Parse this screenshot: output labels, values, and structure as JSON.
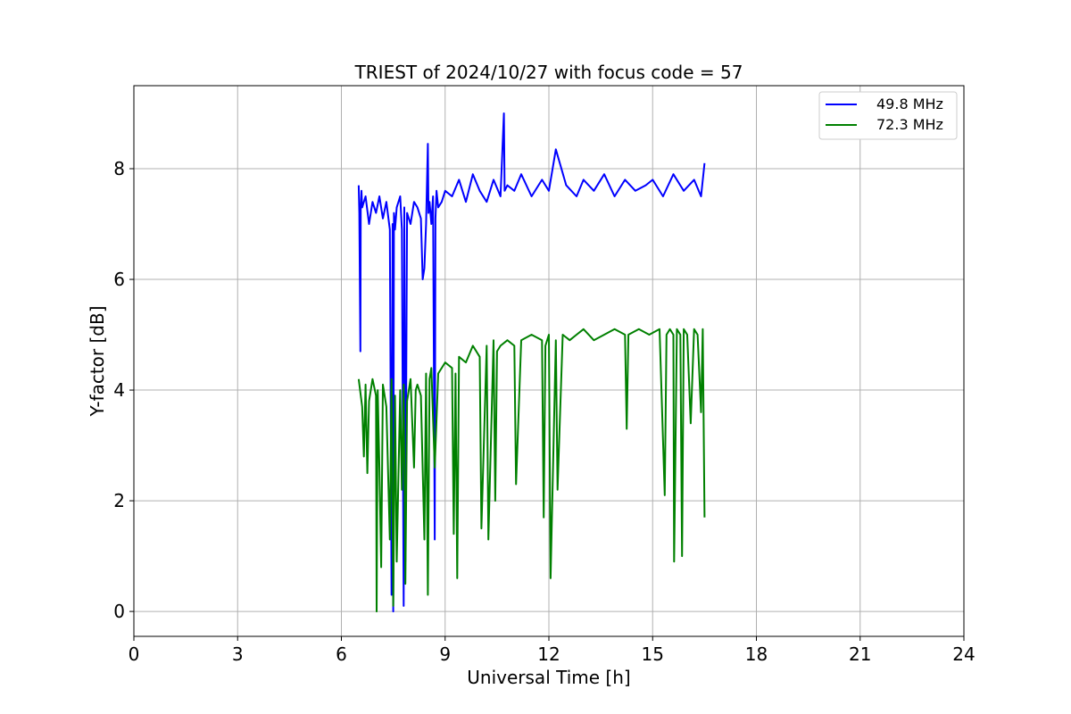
{
  "chart_data": {
    "type": "line",
    "title": "TRIEST of 2024/10/27 with focus code = 57",
    "xlabel": "Universal Time [h]",
    "ylabel": "Y-factor [dB]",
    "xlim": [
      0,
      24
    ],
    "ylim": [
      -0.45,
      9.5
    ],
    "xticks": [
      0,
      3,
      6,
      9,
      12,
      15,
      18,
      21,
      24
    ],
    "yticks": [
      0,
      2,
      4,
      6,
      8
    ],
    "grid": true,
    "legend_position": "top-right",
    "series": [
      {
        "name": "49.8 MHz",
        "color": "#0000ff",
        "x": [
          6.5,
          6.52,
          6.55,
          6.56,
          6.58,
          6.6,
          6.7,
          6.8,
          6.9,
          7.0,
          7.1,
          7.2,
          7.3,
          7.4,
          7.45,
          7.48,
          7.5,
          7.52,
          7.55,
          7.6,
          7.7,
          7.75,
          7.8,
          7.82,
          7.85,
          7.9,
          8.0,
          8.1,
          8.2,
          8.3,
          8.35,
          8.4,
          8.45,
          8.5,
          8.52,
          8.55,
          8.6,
          8.65,
          8.7,
          8.72,
          8.75,
          8.8,
          8.9,
          9.0,
          9.2,
          9.4,
          9.6,
          9.8,
          10.0,
          10.2,
          10.4,
          10.6,
          10.7,
          10.72,
          10.8,
          11.0,
          11.2,
          11.5,
          11.8,
          12.0,
          12.2,
          12.5,
          12.8,
          13.0,
          13.3,
          13.6,
          13.9,
          14.2,
          14.5,
          14.8,
          15.0,
          15.3,
          15.6,
          15.9,
          16.2,
          16.4,
          16.5
        ],
        "y": [
          7.7,
          7.2,
          4.7,
          7.3,
          7.6,
          7.3,
          7.5,
          7.0,
          7.4,
          7.2,
          7.5,
          7.1,
          7.4,
          6.9,
          0.3,
          7.0,
          0.0,
          7.2,
          6.9,
          7.3,
          7.5,
          6.9,
          0.1,
          7.3,
          0.9,
          7.2,
          7.0,
          7.4,
          7.3,
          7.1,
          6.0,
          6.2,
          7.0,
          8.45,
          7.2,
          7.4,
          7.0,
          7.5,
          1.3,
          7.1,
          7.6,
          7.3,
          7.4,
          7.6,
          7.5,
          7.8,
          7.4,
          7.9,
          7.6,
          7.4,
          7.8,
          7.5,
          9.0,
          7.6,
          7.7,
          7.6,
          7.9,
          7.5,
          7.8,
          7.6,
          8.35,
          7.7,
          7.5,
          7.8,
          7.6,
          7.9,
          7.5,
          7.8,
          7.6,
          7.7,
          7.8,
          7.5,
          7.9,
          7.6,
          7.8,
          7.5,
          8.1
        ]
      },
      {
        "name": "72.3 MHz",
        "color": "#008000",
        "x": [
          6.5,
          6.6,
          6.65,
          6.7,
          6.75,
          6.8,
          6.9,
          7.0,
          7.02,
          7.05,
          7.1,
          7.15,
          7.2,
          7.3,
          7.4,
          7.45,
          7.5,
          7.55,
          7.6,
          7.7,
          7.75,
          7.8,
          7.85,
          7.9,
          8.0,
          8.1,
          8.15,
          8.2,
          8.3,
          8.4,
          8.45,
          8.5,
          8.55,
          8.6,
          8.7,
          8.8,
          9.0,
          9.2,
          9.25,
          9.3,
          9.35,
          9.4,
          9.6,
          9.8,
          10.0,
          10.05,
          10.2,
          10.25,
          10.4,
          10.45,
          10.5,
          10.6,
          10.8,
          11.0,
          11.05,
          11.2,
          11.5,
          11.8,
          11.85,
          11.9,
          12.0,
          12.05,
          12.2,
          12.25,
          12.4,
          12.6,
          12.8,
          13.0,
          13.3,
          13.6,
          13.9,
          14.2,
          14.25,
          14.3,
          14.6,
          14.9,
          15.2,
          15.35,
          15.4,
          15.5,
          15.6,
          15.62,
          15.7,
          15.8,
          15.85,
          15.9,
          16.0,
          16.1,
          16.2,
          16.3,
          16.4,
          16.45,
          16.5
        ],
        "y": [
          4.2,
          3.7,
          2.8,
          4.1,
          2.5,
          3.8,
          4.2,
          3.9,
          0.0,
          4.0,
          2.6,
          0.8,
          4.1,
          3.7,
          1.3,
          4.2,
          0.1,
          3.9,
          0.9,
          4.0,
          2.2,
          4.1,
          0.5,
          3.8,
          4.2,
          2.6,
          4.0,
          4.1,
          3.9,
          1.3,
          4.3,
          0.3,
          4.2,
          4.4,
          2.6,
          4.3,
          4.5,
          4.4,
          1.4,
          4.3,
          0.6,
          4.6,
          4.5,
          4.8,
          4.6,
          1.5,
          4.8,
          1.3,
          4.9,
          2.0,
          4.7,
          4.8,
          4.9,
          4.8,
          2.3,
          4.9,
          5.0,
          4.9,
          1.7,
          4.8,
          5.0,
          0.6,
          4.9,
          2.2,
          5.0,
          4.9,
          5.0,
          5.1,
          4.9,
          5.0,
          5.1,
          5.0,
          3.3,
          5.0,
          5.1,
          5.0,
          5.1,
          2.1,
          5.0,
          5.1,
          5.0,
          0.9,
          5.1,
          5.0,
          1.0,
          5.1,
          5.0,
          3.4,
          5.1,
          5.0,
          3.6,
          5.1,
          1.7
        ]
      }
    ]
  }
}
